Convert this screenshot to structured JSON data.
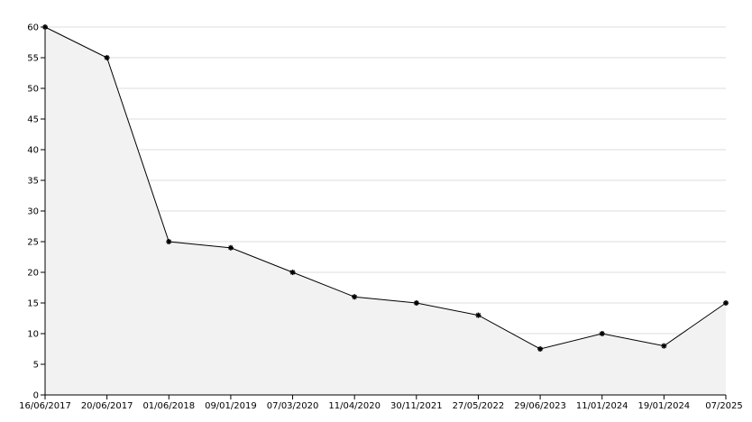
{
  "chart_data": {
    "type": "line",
    "title": "",
    "xlabel": "",
    "ylabel": "",
    "ylim": [
      0,
      60
    ],
    "y_ticks": [
      0,
      5,
      10,
      15,
      20,
      25,
      30,
      35,
      40,
      45,
      50,
      55,
      60
    ],
    "grid": true,
    "fill_under_line": true,
    "x": [
      "16/06/2017",
      "20/06/2017",
      "01/06/2018",
      "09/01/2019",
      "07/03/2020",
      "11/04/2020",
      "30/11/2021",
      "27/05/2022",
      "29/06/2023",
      "11/01/2024",
      "19/01/2024",
      "07/2025"
    ],
    "values": [
      60,
      55,
      25,
      24,
      20,
      16,
      15,
      13,
      7.5,
      10,
      8,
      15
    ],
    "colors": {
      "line": "#000000",
      "area": "#f2f2f2",
      "grid": "#dddddd"
    }
  }
}
